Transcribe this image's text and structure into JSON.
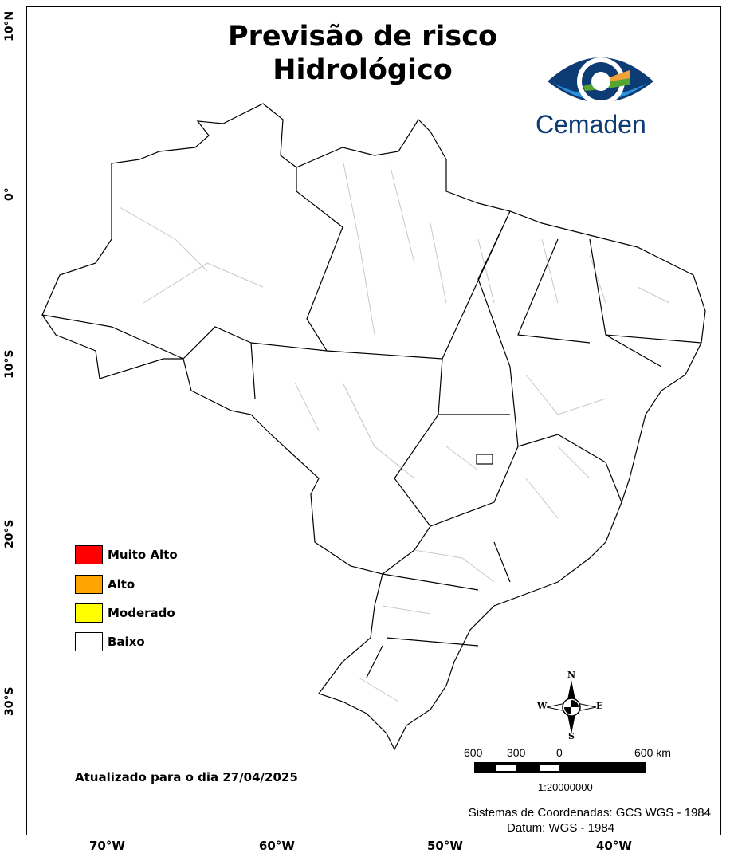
{
  "title_line1": "Previsão de risco",
  "title_line2": "Hidrológico",
  "logo": {
    "text": "Cemaden",
    "colors": {
      "dark_blue": "#0d3b73",
      "light_blue": "#2a90dc",
      "orange": "#f2a23a",
      "green": "#55a630"
    }
  },
  "lat_labels": [
    "10°N",
    "0°",
    "10°S",
    "20°S",
    "30°S"
  ],
  "lon_labels": [
    "70°W",
    "60°W",
    "50°W",
    "40°W"
  ],
  "legend": [
    {
      "label": "Muito Alto",
      "color": "#ff0000"
    },
    {
      "label": "Alto",
      "color": "#ffa500"
    },
    {
      "label": "Moderado",
      "color": "#ffff00"
    },
    {
      "label": "Baixo",
      "color": "#ffffff"
    }
  ],
  "updated_text": "Atualizado para o dia 27/04/2025",
  "compass": {
    "n": "N",
    "s": "S",
    "e": "E",
    "w": "W"
  },
  "scale_bar": {
    "labels": [
      "600",
      "300",
      "0",
      "600 km"
    ],
    "ratio": "1:20000000"
  },
  "crs_text": "Sistemas de Coordenadas: GCS WGS - 1984",
  "datum_text": "Datum: WGS - 1984",
  "map_risk_level_shown": "Baixo"
}
